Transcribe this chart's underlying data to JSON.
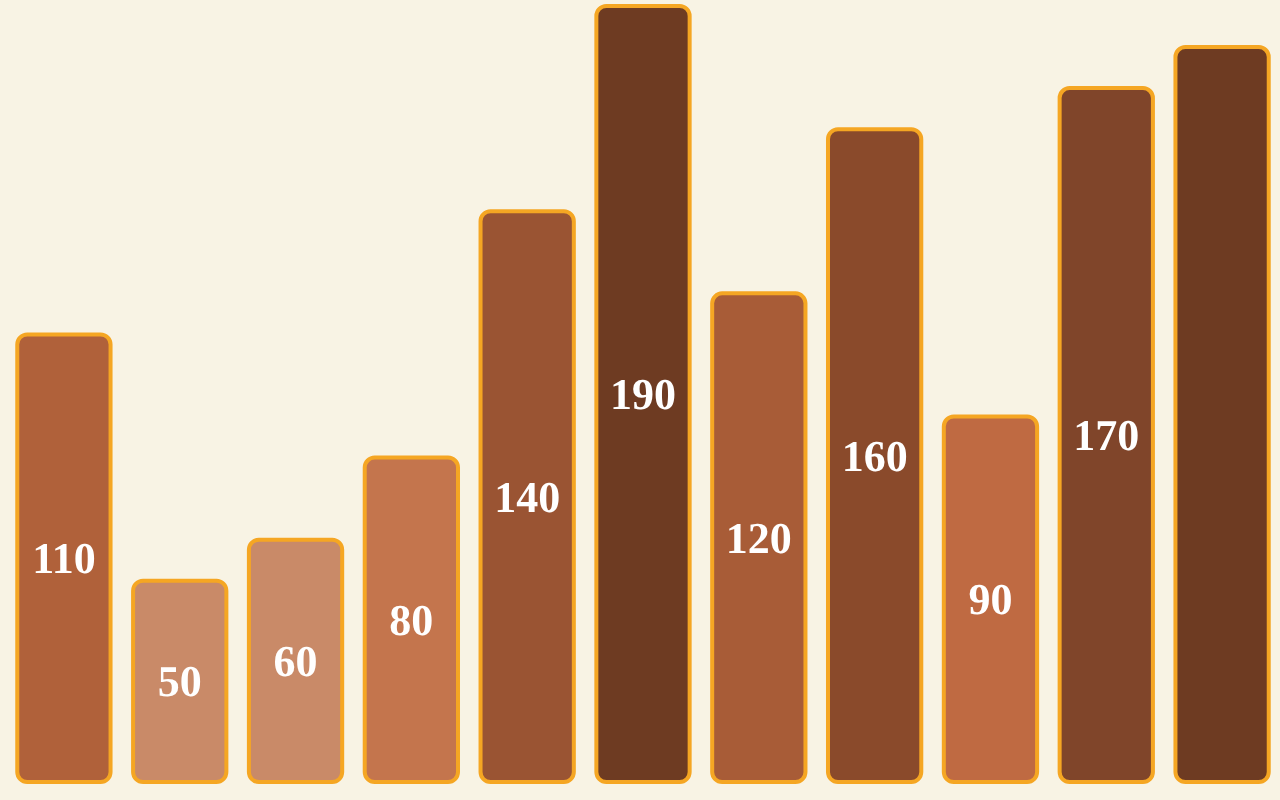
{
  "chart_data": {
    "type": "bar",
    "categories": [
      null,
      null,
      null,
      null,
      null,
      null,
      null,
      null,
      null,
      null,
      null
    ],
    "values": [
      110,
      50,
      60,
      80,
      140,
      190,
      120,
      160,
      90,
      170,
      180
    ],
    "colors": [
      "#b0613a",
      "#c98a68",
      "#c98a68",
      "#c4754d",
      "#9a5433",
      "#6e3b22",
      "#a85c37",
      "#8a4a2b",
      "#bf6a42",
      "#80452a",
      "#6e3b22"
    ],
    "value_labels": [
      "110",
      "50",
      "60",
      "80",
      "140",
      "190",
      "120",
      "160",
      "90",
      "170",
      null
    ]
  }
}
